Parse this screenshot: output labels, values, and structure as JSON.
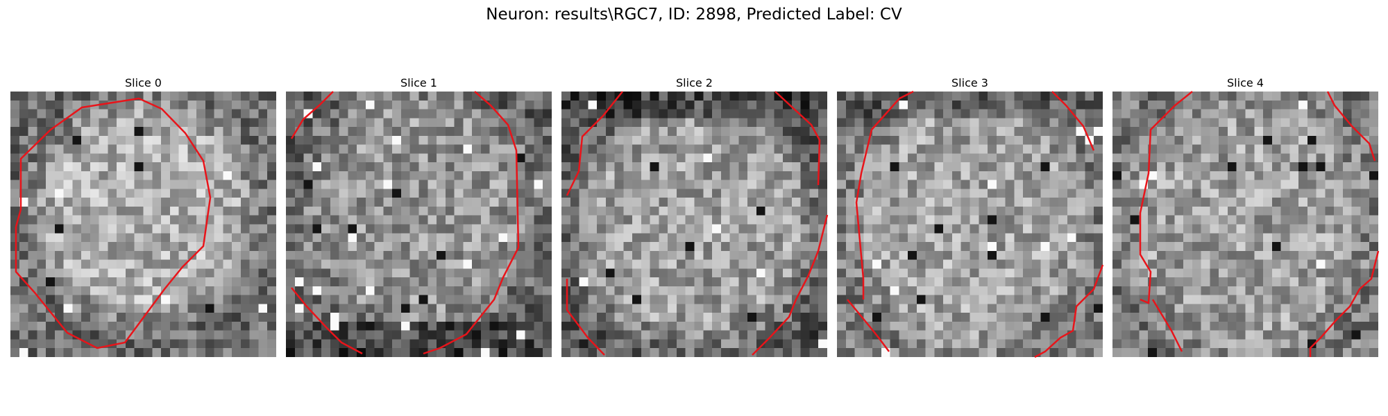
{
  "figure": {
    "title": "Neuron: results\\RGC7, ID: 2898, Predicted Label: CV"
  },
  "colors": {
    "contour": "#e8141a",
    "colormap": "gray"
  },
  "panels": [
    {
      "title": "Slice 0"
    },
    {
      "title": "Slice 1"
    },
    {
      "title": "Slice 2"
    },
    {
      "title": "Slice 3"
    },
    {
      "title": "Slice 4"
    }
  ]
}
